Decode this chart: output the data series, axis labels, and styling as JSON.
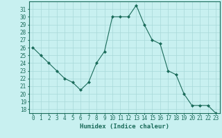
{
  "x": [
    0,
    1,
    2,
    3,
    4,
    5,
    6,
    7,
    8,
    9,
    10,
    11,
    12,
    13,
    14,
    15,
    16,
    17,
    18,
    19,
    20,
    21,
    22,
    23
  ],
  "y": [
    26,
    25,
    24,
    23,
    22,
    21.5,
    20.5,
    21.5,
    24,
    25.5,
    30,
    30,
    30,
    31.5,
    29,
    27,
    26.5,
    23,
    22.5,
    20,
    18.5,
    18.5,
    18.5,
    17.5
  ],
  "line_color": "#1a6b5a",
  "marker": "D",
  "marker_size": 2,
  "background_color": "#c8f0f0",
  "grid_color": "#a8d8d8",
  "xlabel": "Humidex (Indice chaleur)",
  "xlim": [
    -0.5,
    23.5
  ],
  "ylim": [
    17.5,
    32
  ],
  "yticks": [
    18,
    19,
    20,
    21,
    22,
    23,
    24,
    25,
    26,
    27,
    28,
    29,
    30,
    31
  ],
  "xticks": [
    0,
    1,
    2,
    3,
    4,
    5,
    6,
    7,
    8,
    9,
    10,
    11,
    12,
    13,
    14,
    15,
    16,
    17,
    18,
    19,
    20,
    21,
    22,
    23
  ],
  "tick_color": "#1a6b5a",
  "label_fontsize": 6.5,
  "tick_fontsize": 5.5
}
